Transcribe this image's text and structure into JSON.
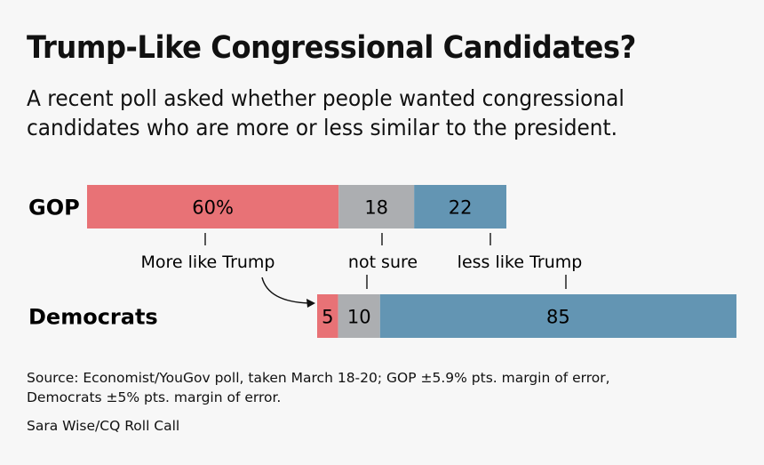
{
  "title": "Trump-Like Congressional Candidates?",
  "subtitle_lines": [
    "A recent poll asked whether people wanted congressional",
    "candidates who are more or less similar to the president."
  ],
  "chart_data": {
    "type": "bar",
    "orientation": "horizontal-stacked",
    "categories": [
      "GOP",
      "Democrats"
    ],
    "series": [
      {
        "name": "More like Trump",
        "values": [
          60,
          5
        ],
        "labels": [
          "60%",
          "5"
        ],
        "color": "#e87276"
      },
      {
        "name": "not sure",
        "values": [
          18,
          10
        ],
        "labels": [
          "18",
          "10"
        ],
        "color": "#acaeb1"
      },
      {
        "name": "less like Trump",
        "values": [
          22,
          85
        ],
        "labels": [
          "22",
          "85"
        ],
        "color": "#6395b3"
      }
    ]
  },
  "source_lines": [
    "Source: Economist/YouGov poll, taken March 18-20; GOP ±5.9% pts. margin of error,",
    "Democrats ±5% pts. margin of error."
  ],
  "credit": "Sara Wise/CQ Roll Call"
}
